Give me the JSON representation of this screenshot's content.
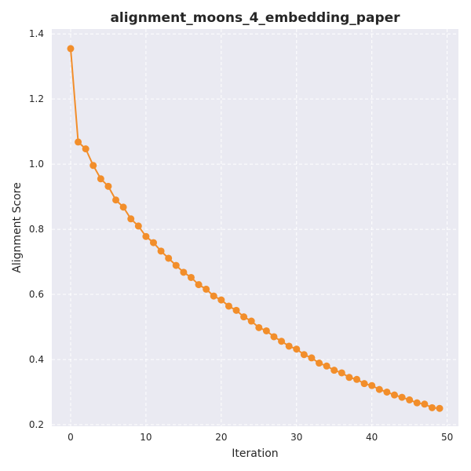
{
  "chart_data": {
    "type": "line",
    "title": "alignment_moons_4_embedding_paper",
    "xlabel": "Iteration",
    "ylabel": "Alignment Score",
    "xlim": [
      -2.5,
      51.5
    ],
    "ylim": [
      0.195,
      1.415
    ],
    "xticks": [
      0,
      10,
      20,
      30,
      40,
      50
    ],
    "yticks": [
      0.2,
      0.4,
      0.6,
      0.8,
      1.0,
      1.2,
      1.4
    ],
    "ytick_labels": [
      "0.2",
      "0.4",
      "0.6",
      "0.8",
      "1.0",
      "1.2",
      "1.4"
    ],
    "xtick_labels": [
      "0",
      "10",
      "20",
      "30",
      "40",
      "50"
    ],
    "grid": true,
    "series": [
      {
        "name": "alignment score",
        "color": "#f28e2b",
        "marker": "circle",
        "x": [
          0,
          1,
          2,
          3,
          4,
          5,
          6,
          7,
          8,
          9,
          10,
          11,
          12,
          13,
          14,
          15,
          16,
          17,
          18,
          19,
          20,
          21,
          22,
          23,
          24,
          25,
          26,
          27,
          28,
          29,
          30,
          31,
          32,
          33,
          34,
          35,
          36,
          37,
          38,
          39,
          40,
          41,
          42,
          43,
          44,
          45,
          46,
          47,
          48,
          49
        ],
        "values": [
          1.355,
          1.068,
          1.047,
          0.996,
          0.955,
          0.932,
          0.89,
          0.868,
          0.832,
          0.81,
          0.778,
          0.759,
          0.733,
          0.711,
          0.689,
          0.668,
          0.652,
          0.63,
          0.616,
          0.595,
          0.583,
          0.564,
          0.551,
          0.531,
          0.518,
          0.498,
          0.488,
          0.47,
          0.456,
          0.441,
          0.432,
          0.415,
          0.405,
          0.389,
          0.38,
          0.367,
          0.359,
          0.345,
          0.339,
          0.326,
          0.32,
          0.308,
          0.3,
          0.291,
          0.284,
          0.276,
          0.267,
          0.263,
          0.252,
          0.25
        ]
      }
    ]
  },
  "colors": {
    "plot_background": "#eaeaf2",
    "grid": "#ffffff",
    "line": "#f28e2b",
    "text": "#262626"
  }
}
